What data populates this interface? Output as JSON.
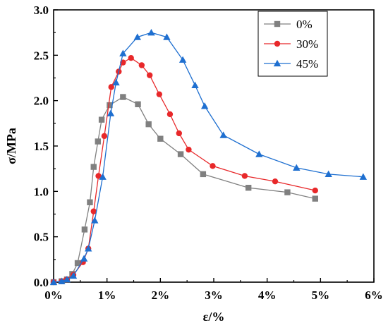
{
  "chart_data": {
    "type": "line",
    "xlabel": "ε/%",
    "ylabel": "σ/MPa",
    "xlim": [
      0,
      6
    ],
    "ylim": [
      0,
      3
    ],
    "x_ticks": [
      0,
      1,
      2,
      3,
      4,
      5,
      6
    ],
    "x_tick_labels": [
      "0%",
      "1%",
      "2%",
      "3%",
      "4%",
      "5%",
      "6%"
    ],
    "y_ticks": [
      0,
      0.5,
      1.0,
      1.5,
      2.0,
      2.5,
      3.0
    ],
    "y_tick_labels": [
      "0.0",
      "0.5",
      "1.0",
      "1.5",
      "2.0",
      "2.5",
      "3.0"
    ],
    "grid": false,
    "legend_position": "top-right",
    "series": [
      {
        "name": "0%",
        "color": "#808080",
        "marker": "square",
        "points": [
          [
            0.0,
            0.0
          ],
          [
            0.15,
            0.01
          ],
          [
            0.25,
            0.03
          ],
          [
            0.35,
            0.09
          ],
          [
            0.45,
            0.21
          ],
          [
            0.58,
            0.58
          ],
          [
            0.68,
            0.88
          ],
          [
            0.75,
            1.27
          ],
          [
            0.83,
            1.55
          ],
          [
            0.9,
            1.79
          ],
          [
            1.05,
            1.95
          ],
          [
            1.3,
            2.04
          ],
          [
            1.58,
            1.96
          ],
          [
            1.78,
            1.74
          ],
          [
            2.0,
            1.58
          ],
          [
            2.38,
            1.41
          ],
          [
            2.8,
            1.19
          ],
          [
            3.65,
            1.04
          ],
          [
            4.38,
            0.99
          ],
          [
            4.9,
            0.92
          ]
        ]
      },
      {
        "name": "30%",
        "color": "#e8282a",
        "marker": "circle",
        "points": [
          [
            0.0,
            0.0
          ],
          [
            0.15,
            0.01
          ],
          [
            0.25,
            0.03
          ],
          [
            0.37,
            0.08
          ],
          [
            0.55,
            0.22
          ],
          [
            0.65,
            0.37
          ],
          [
            0.75,
            0.78
          ],
          [
            0.84,
            1.17
          ],
          [
            0.95,
            1.61
          ],
          [
            1.08,
            2.15
          ],
          [
            1.22,
            2.32
          ],
          [
            1.3,
            2.42
          ],
          [
            1.45,
            2.47
          ],
          [
            1.65,
            2.39
          ],
          [
            1.8,
            2.28
          ],
          [
            1.98,
            2.07
          ],
          [
            2.18,
            1.85
          ],
          [
            2.35,
            1.64
          ],
          [
            2.53,
            1.46
          ],
          [
            2.98,
            1.28
          ],
          [
            3.58,
            1.17
          ],
          [
            4.15,
            1.11
          ],
          [
            4.9,
            1.01
          ]
        ]
      },
      {
        "name": "45%",
        "color": "#1e6fd0",
        "marker": "triangle",
        "points": [
          [
            0.0,
            0.0
          ],
          [
            0.15,
            0.01
          ],
          [
            0.25,
            0.03
          ],
          [
            0.37,
            0.07
          ],
          [
            0.57,
            0.26
          ],
          [
            0.65,
            0.37
          ],
          [
            0.77,
            0.68
          ],
          [
            0.92,
            1.16
          ],
          [
            1.07,
            1.86
          ],
          [
            1.17,
            2.2
          ],
          [
            1.3,
            2.52
          ],
          [
            1.57,
            2.7
          ],
          [
            1.83,
            2.75
          ],
          [
            2.12,
            2.7
          ],
          [
            2.42,
            2.45
          ],
          [
            2.65,
            2.17
          ],
          [
            2.83,
            1.94
          ],
          [
            3.18,
            1.62
          ],
          [
            3.85,
            1.41
          ],
          [
            4.55,
            1.26
          ],
          [
            5.15,
            1.19
          ],
          [
            5.8,
            1.16
          ]
        ]
      }
    ]
  }
}
